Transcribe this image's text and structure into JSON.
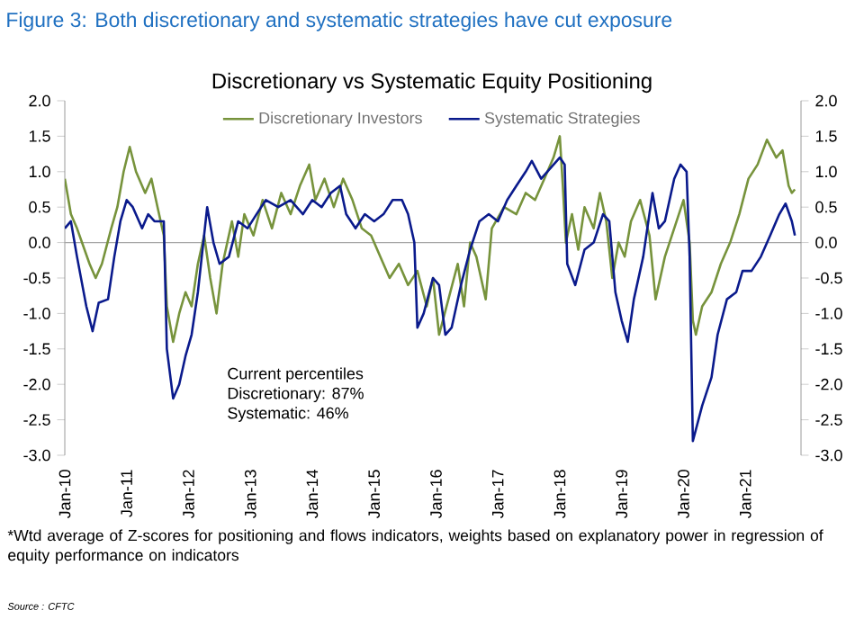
{
  "chart_data": {
    "type": "line",
    "title": "Figure 3: Both discretionary and systematic strategies have cut exposure",
    "subtitle": "Discretionary  vs Systematic Equity Positioning",
    "annotations": [
      "Current percentiles",
      "Discretionary: 87%",
      "Systematic: 46%",
      "*Wtd average of Z-scores for positioning and flows indicators, weights based on explanatory power in regression of equity performance on indicators",
      "Source : CFTC"
    ],
    "series": [
      {
        "name": "Discretionary Investors",
        "color": "#77933c",
        "x": [
          "2010-01-01",
          "2010-02-06",
          "2010-03-14",
          "2010-05-27",
          "2010-07-02",
          "2010-08-08",
          "2010-10-02",
          "2010-11-07",
          "2010-12-14",
          "2011-01-19",
          "2011-02-25",
          "2011-04-20",
          "2011-05-27",
          "2011-07-02",
          "2011-08-08",
          "2011-08-26",
          "2011-10-02",
          "2011-11-07",
          "2011-12-14",
          "2012-01-19",
          "2012-02-25",
          "2012-04-02",
          "2012-05-08",
          "2012-06-14",
          "2012-07-20",
          "2012-09-13",
          "2012-10-20",
          "2012-11-25",
          "2013-01-19",
          "2013-03-14",
          "2013-05-08",
          "2013-07-02",
          "2013-08-26",
          "2013-10-20",
          "2013-12-14",
          "2014-01-19",
          "2014-03-14",
          "2014-05-08",
          "2014-07-02",
          "2014-08-26",
          "2014-10-20",
          "2014-12-14",
          "2015-02-06",
          "2015-04-02",
          "2015-05-27",
          "2015-07-20",
          "2015-09-13",
          "2015-11-07",
          "2015-12-14",
          "2016-01-19",
          "2016-03-14",
          "2016-05-08",
          "2016-06-14",
          "2016-07-20",
          "2016-08-26",
          "2016-10-20",
          "2016-11-25",
          "2017-02-06",
          "2017-04-20",
          "2017-06-14",
          "2017-08-08",
          "2017-10-02",
          "2017-11-25",
          "2018-01-01",
          "2018-01-19",
          "2018-02-06",
          "2018-03-14",
          "2018-04-20",
          "2018-05-27",
          "2018-07-20",
          "2018-08-26",
          "2018-10-02",
          "2018-11-07",
          "2018-12-14",
          "2019-01-19",
          "2019-02-25",
          "2019-04-20",
          "2019-06-14",
          "2019-07-20",
          "2019-09-13",
          "2019-11-07",
          "2020-01-01",
          "2020-02-06",
          "2020-02-25",
          "2020-03-14",
          "2020-04-20",
          "2020-06-14",
          "2020-08-08",
          "2020-10-02",
          "2020-11-25",
          "2021-01-19",
          "2021-03-14",
          "2021-05-08",
          "2021-07-02",
          "2021-08-08",
          "2021-09-13",
          "2021-10-02",
          "2021-10-20"
        ],
        "values": [
          0.9,
          0.4,
          0.2,
          -0.3,
          -0.5,
          -0.3,
          0.2,
          0.5,
          1.0,
          1.35,
          1.0,
          0.7,
          0.9,
          0.5,
          0.1,
          -0.9,
          -1.4,
          -1.0,
          -0.7,
          -0.9,
          -0.3,
          0.1,
          -0.5,
          -1.0,
          -0.3,
          0.3,
          -0.2,
          0.4,
          0.1,
          0.6,
          0.2,
          0.7,
          0.4,
          0.8,
          1.1,
          0.6,
          0.9,
          0.5,
          0.9,
          0.6,
          0.2,
          0.1,
          -0.2,
          -0.5,
          -0.3,
          -0.6,
          -0.4,
          -0.9,
          -0.5,
          -1.3,
          -0.8,
          -0.3,
          -0.9,
          0.0,
          -0.2,
          -0.8,
          0.2,
          0.5,
          0.4,
          0.7,
          0.6,
          0.9,
          1.2,
          1.5,
          0.8,
          0.0,
          0.4,
          -0.1,
          0.5,
          0.2,
          0.7,
          0.3,
          -0.5,
          0.0,
          -0.2,
          0.3,
          0.6,
          0.1,
          -0.8,
          -0.2,
          0.2,
          0.6,
          0.0,
          -1.1,
          -1.3,
          -0.9,
          -0.7,
          -0.3,
          0.0,
          0.4,
          0.9,
          1.1,
          1.45,
          1.2,
          1.3,
          0.8,
          0.7,
          0.75
        ]
      },
      {
        "name": "Systematic Strategies",
        "color": "#0a1a8c",
        "x": [
          "2010-01-01",
          "2010-02-06",
          "2010-03-14",
          "2010-05-08",
          "2010-06-14",
          "2010-07-20",
          "2010-09-13",
          "2010-10-20",
          "2010-11-25",
          "2011-01-01",
          "2011-02-06",
          "2011-04-02",
          "2011-05-08",
          "2011-06-14",
          "2011-07-20",
          "2011-08-08",
          "2011-08-26",
          "2011-10-02",
          "2011-11-07",
          "2011-12-14",
          "2012-01-19",
          "2012-02-25",
          "2012-04-20",
          "2012-05-27",
          "2012-07-02",
          "2012-08-26",
          "2012-10-20",
          "2012-12-14",
          "2013-02-06",
          "2013-04-02",
          "2013-06-14",
          "2013-08-26",
          "2013-11-07",
          "2014-01-01",
          "2014-02-25",
          "2014-04-20",
          "2014-06-14",
          "2014-07-20",
          "2014-09-13",
          "2014-11-07",
          "2015-01-01",
          "2015-02-25",
          "2015-04-20",
          "2015-06-14",
          "2015-07-20",
          "2015-08-26",
          "2015-09-13",
          "2015-10-20",
          "2015-12-14",
          "2016-01-19",
          "2016-02-25",
          "2016-04-02",
          "2016-05-27",
          "2016-07-20",
          "2016-09-13",
          "2016-11-07",
          "2017-01-01",
          "2017-02-25",
          "2017-04-20",
          "2017-06-14",
          "2017-07-20",
          "2017-09-13",
          "2017-11-07",
          "2018-01-01",
          "2018-01-30",
          "2018-02-14",
          "2018-04-02",
          "2018-05-27",
          "2018-07-20",
          "2018-09-13",
          "2018-10-20",
          "2018-11-25",
          "2019-01-01",
          "2019-02-06",
          "2019-03-14",
          "2019-05-08",
          "2019-07-02",
          "2019-08-08",
          "2019-09-13",
          "2019-11-07",
          "2019-12-14",
          "2020-01-19",
          "2020-02-06",
          "2020-02-25",
          "2020-04-20",
          "2020-06-14",
          "2020-07-20",
          "2020-09-13",
          "2020-11-07",
          "2020-12-14",
          "2021-02-06",
          "2021-04-02",
          "2021-05-27",
          "2021-07-20",
          "2021-08-26",
          "2021-10-02",
          "2021-10-20"
        ],
        "values": [
          0.2,
          0.3,
          -0.2,
          -0.9,
          -1.25,
          -0.85,
          -0.8,
          -0.2,
          0.3,
          0.6,
          0.5,
          0.2,
          0.4,
          0.3,
          0.3,
          0.3,
          -1.5,
          -2.2,
          -2.0,
          -1.6,
          -1.3,
          -0.7,
          0.5,
          0.0,
          -0.3,
          -0.2,
          0.3,
          0.2,
          0.4,
          0.6,
          0.5,
          0.6,
          0.4,
          0.6,
          0.5,
          0.7,
          0.8,
          0.4,
          0.2,
          0.4,
          0.3,
          0.4,
          0.6,
          0.6,
          0.4,
          0.0,
          -1.2,
          -1.0,
          -0.5,
          -0.6,
          -1.3,
          -1.2,
          -0.6,
          -0.1,
          0.3,
          0.4,
          0.3,
          0.6,
          0.8,
          1.0,
          1.15,
          0.9,
          1.05,
          1.2,
          1.1,
          -0.3,
          -0.6,
          -0.1,
          0.0,
          0.4,
          0.3,
          -0.7,
          -1.1,
          -1.4,
          -0.8,
          -0.2,
          0.7,
          0.2,
          0.3,
          0.9,
          1.1,
          1.0,
          -0.2,
          -2.8,
          -2.3,
          -1.9,
          -1.3,
          -0.8,
          -0.7,
          -0.4,
          -0.4,
          -0.2,
          0.1,
          0.4,
          0.55,
          0.3,
          0.1
        ]
      }
    ],
    "xlim": [
      "2010-01-01",
      "2021-11-25"
    ],
    "xticks": [
      {
        "value": "2010-01-01",
        "label": "Jan-10"
      },
      {
        "value": "2011-01-01",
        "label": "Jan-11"
      },
      {
        "value": "2012-01-01",
        "label": "Jan-12"
      },
      {
        "value": "2013-01-01",
        "label": "Jan-13"
      },
      {
        "value": "2014-01-01",
        "label": "Jan-14"
      },
      {
        "value": "2015-01-01",
        "label": "Jan-15"
      },
      {
        "value": "2016-01-01",
        "label": "Jan-16"
      },
      {
        "value": "2017-01-01",
        "label": "Jan-17"
      },
      {
        "value": "2018-01-01",
        "label": "Jan-18"
      },
      {
        "value": "2019-01-01",
        "label": "Jan-19"
      },
      {
        "value": "2020-01-01",
        "label": "Jan-20"
      },
      {
        "value": "2021-01-01",
        "label": "Jan-21"
      }
    ],
    "ylim": [
      -3,
      2
    ],
    "yticks": [
      {
        "value": -3,
        "label": "-3.0"
      },
      {
        "value": -2.5,
        "label": "-2.5"
      },
      {
        "value": -2,
        "label": "-2.0"
      },
      {
        "value": -1.5,
        "label": "-1.5"
      },
      {
        "value": -1,
        "label": "-1.0"
      },
      {
        "value": -0.5,
        "label": "-0.5"
      },
      {
        "value": 0,
        "label": "0.0"
      },
      {
        "value": 0.5,
        "label": "0.5"
      },
      {
        "value": 1,
        "label": "1.0"
      },
      {
        "value": 1.5,
        "label": "1.5"
      },
      {
        "value": 2,
        "label": "2.0"
      }
    ],
    "y2lim": [
      -3,
      2
    ],
    "y2ticks": [
      {
        "value": -3,
        "label": "-3.0"
      },
      {
        "value": -2.5,
        "label": "-2.5"
      },
      {
        "value": -2,
        "label": "-2.0"
      },
      {
        "value": -1.5,
        "label": "-1.5"
      },
      {
        "value": -1,
        "label": "-1.0"
      },
      {
        "value": -0.5,
        "label": "-0.5"
      },
      {
        "value": 0,
        "label": "0.0"
      },
      {
        "value": 0.5,
        "label": "0.5"
      },
      {
        "value": 1,
        "label": "1.0"
      },
      {
        "value": 1.5,
        "label": "1.5"
      },
      {
        "value": 2,
        "label": "2.0"
      }
    ],
    "ref_lines": [
      {
        "axis": "y",
        "value": 0,
        "color": "#a6a6a6"
      }
    ],
    "legend": "top",
    "marker": "none",
    "line_style": "solid",
    "grid": false
  }
}
